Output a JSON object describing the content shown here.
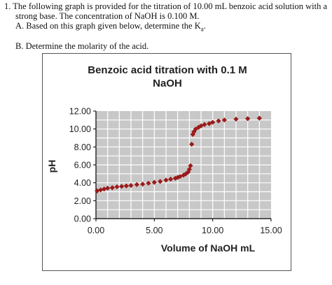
{
  "question": {
    "line1": "1.  The following graph is provided for the titration of 10.00 mL benzoic acid solution with a",
    "line2": "strong base. The concentration of NaOH is 0.100 M.",
    "line3_prefix": "A. Based on this graph given below, determine the K",
    "line3_sub": "a",
    "line3_suffix": ".",
    "line4": "B. Determine the molarity of the acid."
  },
  "colors": {
    "marker": "#9b1b1b",
    "plot_bg": "#c8c8c8",
    "grid": "#ffffff",
    "axis": "#000000"
  },
  "chart_data": {
    "type": "scatter",
    "title_line1": "Benzoic acid titration with 0.1 M",
    "title_line2": "NaOH",
    "xlabel": "Volume of NaOH mL",
    "ylabel": "pH",
    "xlim": [
      0,
      15
    ],
    "ylim": [
      0,
      12
    ],
    "grid": true,
    "x_ticks": [
      "0.00",
      "5.00",
      "10.00",
      "15.00"
    ],
    "y_ticks": [
      "0.00",
      "2.00",
      "4.00",
      "6.00",
      "8.00",
      "10.00",
      "12.00"
    ],
    "series": [
      {
        "marker": "diamond",
        "points": [
          [
            0.1,
            3.1
          ],
          [
            0.4,
            3.2
          ],
          [
            0.7,
            3.3
          ],
          [
            1.0,
            3.4
          ],
          [
            1.4,
            3.45
          ],
          [
            1.8,
            3.55
          ],
          [
            2.2,
            3.6
          ],
          [
            2.6,
            3.65
          ],
          [
            3.0,
            3.7
          ],
          [
            3.5,
            3.8
          ],
          [
            4.0,
            3.85
          ],
          [
            4.5,
            3.95
          ],
          [
            5.0,
            4.05
          ],
          [
            5.5,
            4.15
          ],
          [
            6.0,
            4.3
          ],
          [
            6.4,
            4.4
          ],
          [
            6.8,
            4.5
          ],
          [
            7.0,
            4.6
          ],
          [
            7.2,
            4.7
          ],
          [
            7.5,
            4.85
          ],
          [
            7.7,
            5.0
          ],
          [
            7.9,
            5.2
          ],
          [
            8.0,
            5.5
          ],
          [
            8.1,
            5.9
          ],
          [
            8.2,
            8.3
          ],
          [
            8.3,
            9.4
          ],
          [
            8.4,
            9.7
          ],
          [
            8.55,
            10.0
          ],
          [
            8.8,
            10.2
          ],
          [
            9.0,
            10.35
          ],
          [
            9.3,
            10.5
          ],
          [
            9.7,
            10.6
          ],
          [
            10.0,
            10.75
          ],
          [
            10.5,
            10.9
          ],
          [
            11.0,
            11.0
          ],
          [
            12.0,
            11.1
          ],
          [
            13.0,
            11.15
          ],
          [
            14.0,
            11.2
          ]
        ]
      }
    ]
  }
}
